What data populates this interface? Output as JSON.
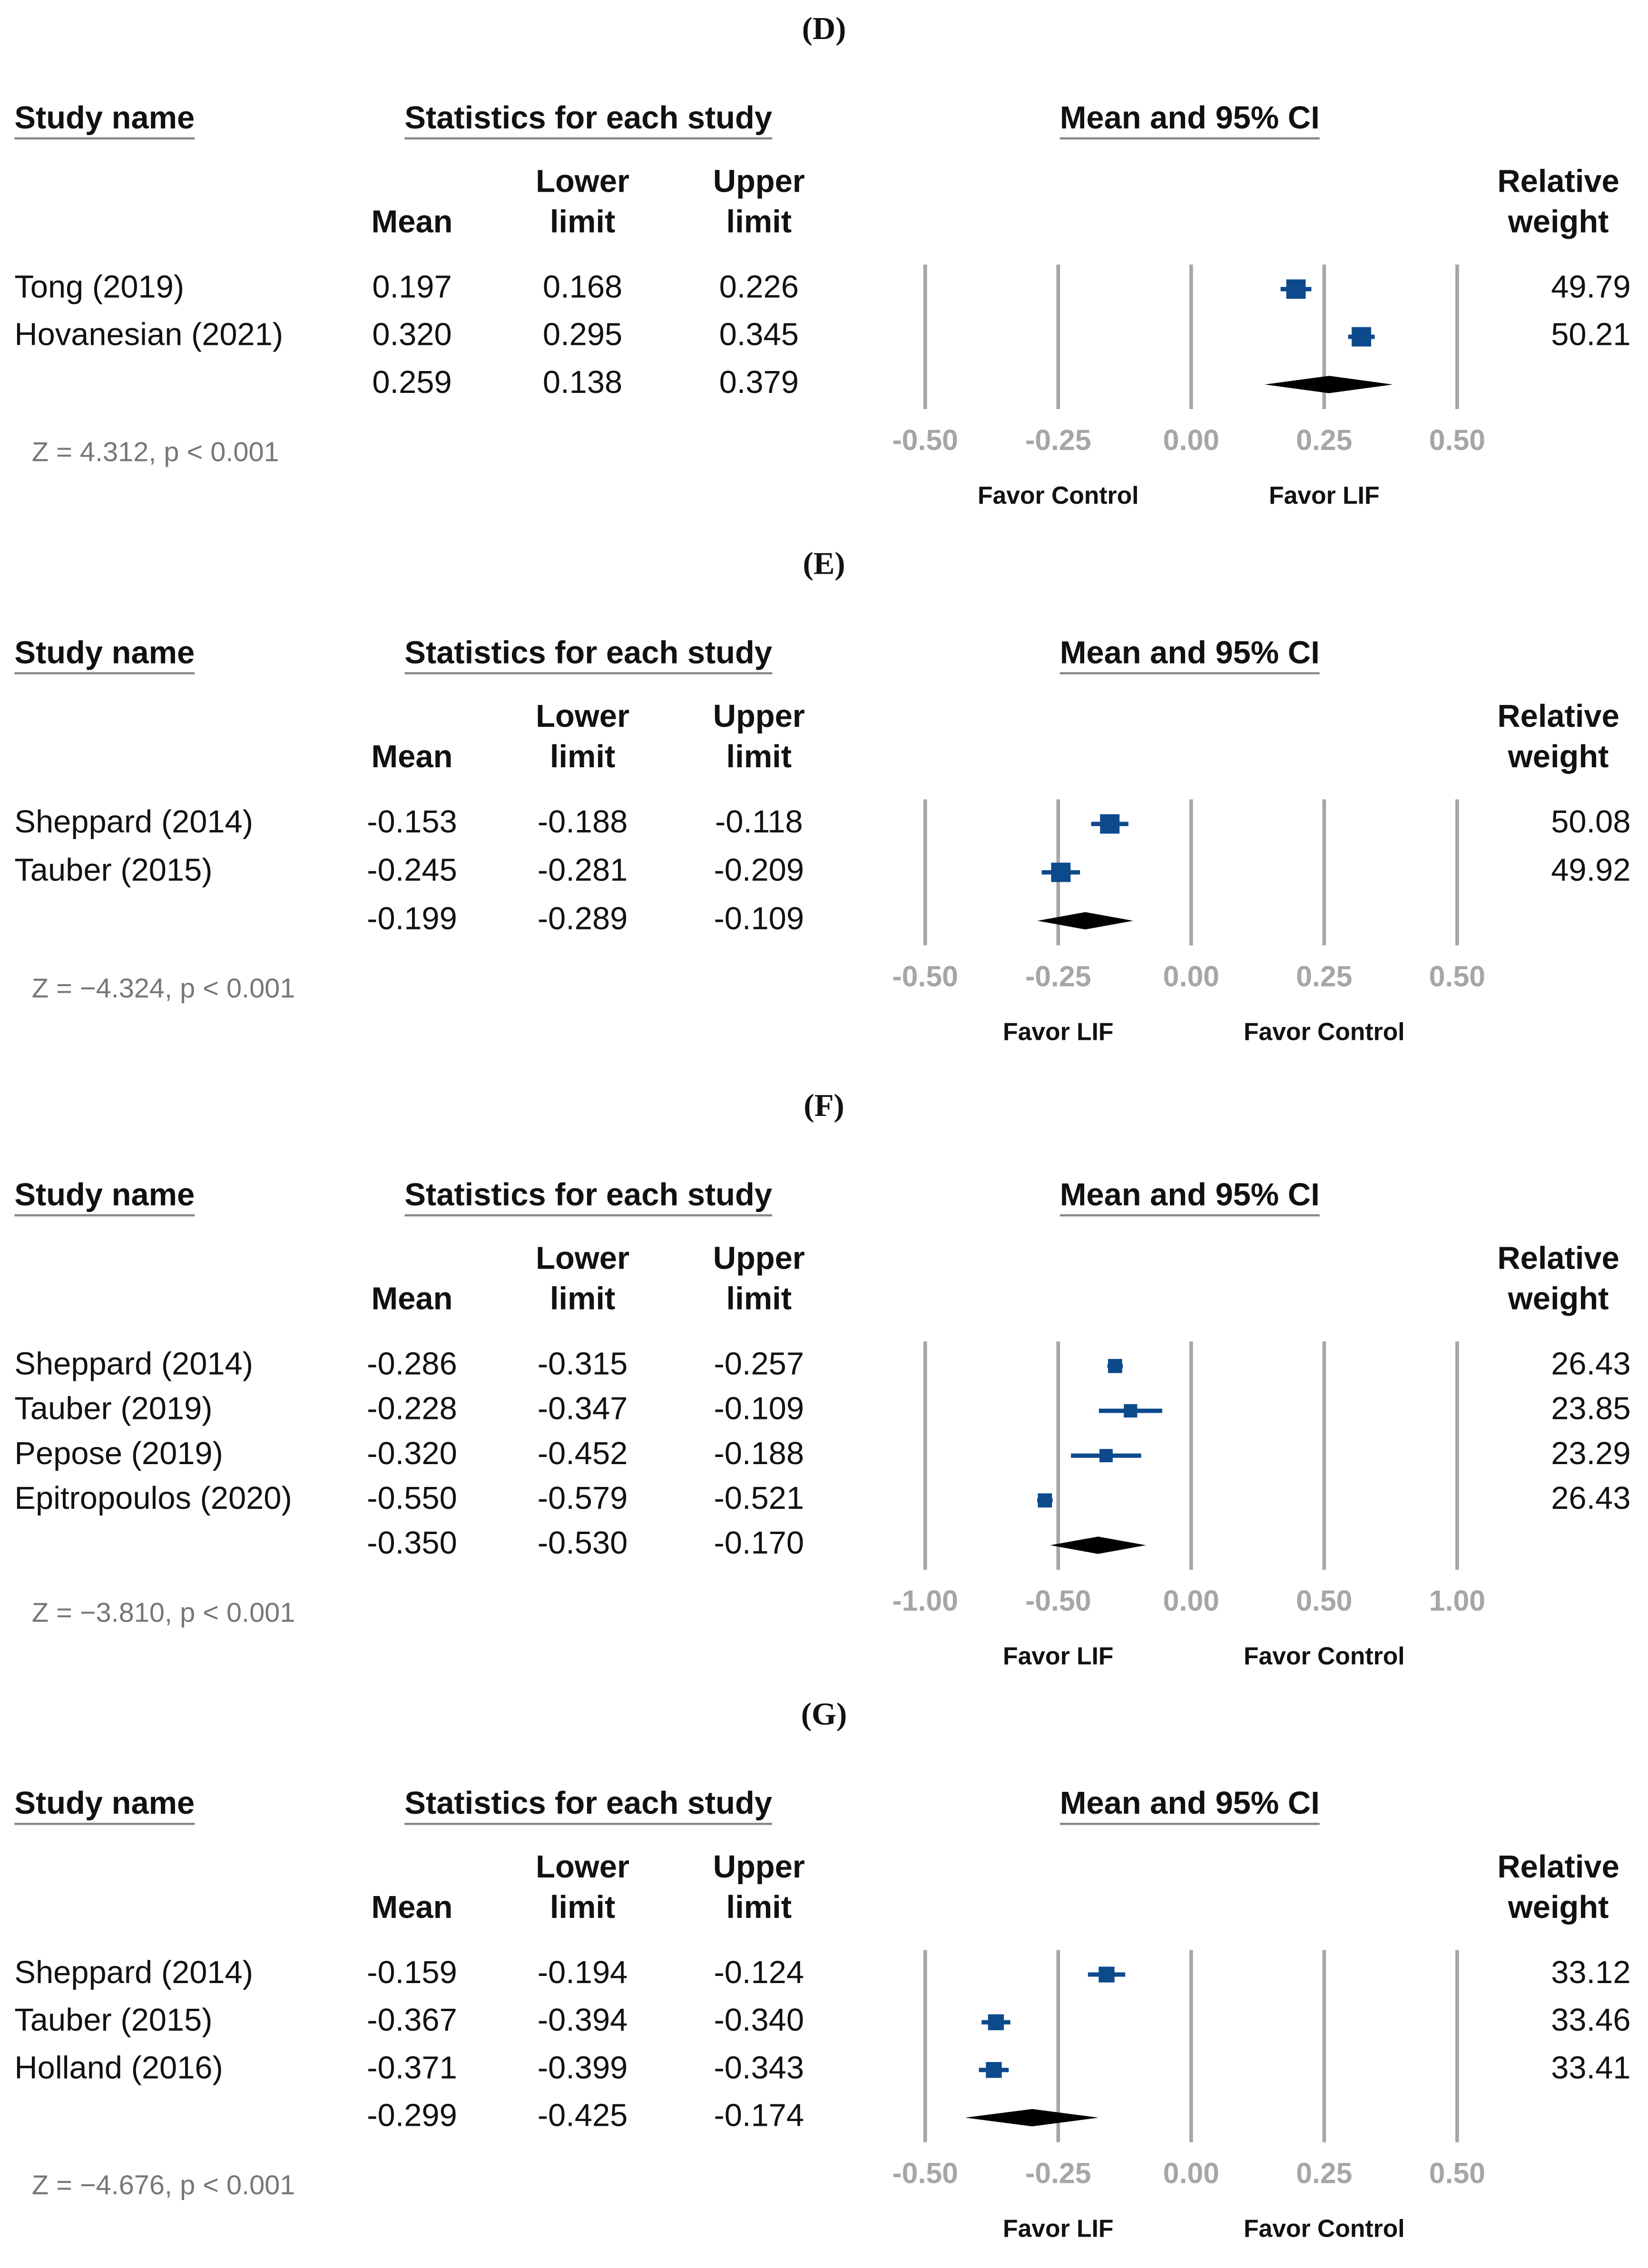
{
  "chart_data": [
    {
      "type": "forest",
      "panel_label": "(D)",
      "study_col": "Study name",
      "stats_col": "Statistics for each study",
      "ci_col": "Mean and 95% CI",
      "mean_col": "Mean",
      "lower_col": [
        "Lower",
        "limit"
      ],
      "upper_col": [
        "Upper",
        "limit"
      ],
      "weight_col": [
        "Relative",
        "weight"
      ],
      "studies": [
        {
          "name": "Tong (2019)",
          "values": [
            0.197,
            0.168,
            0.226,
            49.79
          ],
          "value_labels": [
            "0.197",
            "0.168",
            "0.226",
            "49.79"
          ]
        },
        {
          "name": "Hovanesian (2021)",
          "values": [
            0.32,
            0.295,
            0.345,
            50.21
          ],
          "value_labels": [
            "0.320",
            "0.295",
            "0.345",
            "50.21"
          ]
        }
      ],
      "summary": {
        "values": [
          0.259,
          0.138,
          0.379
        ],
        "value_labels": [
          "0.259",
          "0.138",
          "0.379"
        ]
      },
      "z_label": "Z = 4.312, p < 0.001",
      "xlim": [
        -0.5,
        0.5
      ],
      "xticks": [
        {
          "value": -0.5,
          "label": "-0.50"
        },
        -0.25,
        {
          "value": 0,
          "label": "0.00"
        },
        0.25,
        {
          "value": 0.5,
          "label": "0.50"
        }
      ],
      "favor_left": "Favor Control",
      "favor_right": "Favor LIF",
      "color": "#0d4a8c"
    },
    {
      "type": "forest",
      "panel_label": "(E)",
      "study_col": "Study name",
      "stats_col": "Statistics for each study",
      "ci_col": "Mean and 95% CI",
      "mean_col": "Mean",
      "lower_col": [
        "Lower",
        "limit"
      ],
      "upper_col": [
        "Upper",
        "limit"
      ],
      "weight_col": [
        "Relative",
        "weight"
      ],
      "studies": [
        {
          "name": "Sheppard (2014)",
          "values": [
            -0.153,
            -0.188,
            -0.118,
            50.08
          ],
          "value_labels": [
            "-0.153",
            "-0.188",
            "-0.118",
            "50.08"
          ]
        },
        {
          "name": "Tauber (2015)",
          "values": [
            -0.245,
            -0.281,
            -0.209,
            49.92
          ],
          "value_labels": [
            "-0.245",
            "-0.281",
            "-0.209",
            "49.92"
          ]
        }
      ],
      "summary": {
        "values": [
          -0.199,
          -0.289,
          -0.109
        ],
        "value_labels": [
          "-0.199",
          "-0.289",
          "-0.109"
        ]
      },
      "z_label": "Z = −4.324, p < 0.001",
      "xlim": [
        -0.5,
        0.5
      ],
      "xticks": [
        {
          "value": -0.5,
          "label": "-0.50"
        },
        -0.25,
        {
          "value": 0,
          "label": "0.00"
        },
        0.25,
        {
          "value": 0.5,
          "label": "0.50"
        }
      ],
      "favor_left": "Favor LIF",
      "favor_right": "Favor Control",
      "color": "#0d4a8c"
    },
    {
      "type": "forest",
      "panel_label": "(F)",
      "study_col": "Study name",
      "stats_col": "Statistics for each study",
      "ci_col": "Mean and 95% CI",
      "mean_col": "Mean",
      "lower_col": [
        "Lower",
        "limit"
      ],
      "upper_col": [
        "Upper",
        "limit"
      ],
      "weight_col": [
        "Relative",
        "weight"
      ],
      "studies": [
        {
          "name": "Sheppard (2014)",
          "values": [
            -0.286,
            -0.315,
            -0.257,
            26.43
          ],
          "value_labels": [
            "-0.286",
            "-0.315",
            "-0.257",
            "26.43"
          ]
        },
        {
          "name": "Tauber (2019)",
          "values": [
            -0.228,
            -0.347,
            -0.109,
            23.85
          ],
          "value_labels": [
            "-0.228",
            "-0.347",
            "-0.109",
            "23.85"
          ]
        },
        {
          "name": "Pepose (2019)",
          "values": [
            -0.32,
            -0.452,
            -0.188,
            23.29
          ],
          "value_labels": [
            "-0.320",
            "-0.452",
            "-0.188",
            "23.29"
          ]
        },
        {
          "name": "Epitropoulos (2020)",
          "values": [
            -0.55,
            -0.579,
            -0.521,
            26.43
          ],
          "value_labels": [
            "-0.550",
            "-0.579",
            "-0.521",
            "26.43"
          ]
        }
      ],
      "summary": {
        "values": [
          -0.35,
          -0.53,
          -0.17
        ],
        "value_labels": [
          "-0.350",
          "-0.530",
          "-0.170"
        ]
      },
      "z_label": "Z = −3.810, p < 0.001",
      "xlim": [
        -1,
        1
      ],
      "xticks": [
        {
          "value": -1,
          "label": "-1.00"
        },
        {
          "value": -0.5,
          "label": "-0.50"
        },
        {
          "value": 0,
          "label": "0.00"
        },
        {
          "value": 0.5,
          "label": "0.50"
        },
        {
          "value": 1,
          "label": "1.00"
        }
      ],
      "favor_left": "Favor LIF",
      "favor_right": "Favor Control",
      "color": "#0d4a8c"
    },
    {
      "type": "forest",
      "panel_label": "(G)",
      "study_col": "Study name",
      "stats_col": "Statistics for each study",
      "ci_col": "Mean and 95% CI",
      "mean_col": "Mean",
      "lower_col": [
        "Lower",
        "limit"
      ],
      "upper_col": [
        "Upper",
        "limit"
      ],
      "weight_col": [
        "Relative",
        "weight"
      ],
      "studies": [
        {
          "name": "Sheppard (2014)",
          "values": [
            -0.159,
            -0.194,
            -0.124,
            33.12
          ],
          "value_labels": [
            "-0.159",
            "-0.194",
            "-0.124",
            "33.12"
          ]
        },
        {
          "name": "Tauber (2015)",
          "values": [
            -0.367,
            -0.394,
            -0.34,
            33.46
          ],
          "value_labels": [
            "-0.367",
            "-0.394",
            "-0.340",
            "33.46"
          ]
        },
        {
          "name": "Holland (2016)",
          "values": [
            -0.371,
            -0.399,
            -0.343,
            33.41
          ],
          "value_labels": [
            "-0.371",
            "-0.399",
            "-0.343",
            "33.41"
          ]
        }
      ],
      "summary": {
        "values": [
          -0.299,
          -0.425,
          -0.174
        ],
        "value_labels": [
          "-0.299",
          "-0.425",
          "-0.174"
        ]
      },
      "z_label": "Z = −4.676, p < 0.001",
      "xlim": [
        -0.5,
        0.5
      ],
      "xticks": [
        {
          "value": -0.5,
          "label": "-0.50"
        },
        -0.25,
        {
          "value": 0,
          "label": "0.00"
        },
        0.25,
        {
          "value": 0.5,
          "label": "0.50"
        }
      ],
      "favor_left": "Favor LIF",
      "favor_right": "Favor Control",
      "color": "#0d4a8c"
    }
  ]
}
